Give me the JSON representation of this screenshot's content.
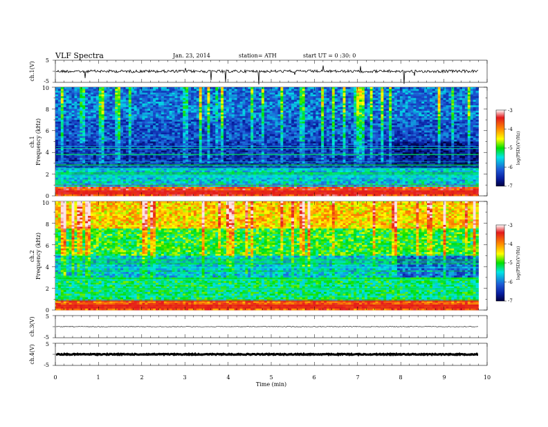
{
  "header": {
    "title": "VLF  Spectra",
    "date": "Jan. 23, 2014",
    "station": "station= ATH",
    "start": "start  UT =   0 :30: 0"
  },
  "chart_data": [
    {
      "type": "line",
      "ylabel": "ch.1(V)",
      "ylim": [
        -5,
        5
      ],
      "ytick_labels": [
        "5",
        "-5"
      ],
      "baseline": 0.0,
      "trace_color": "#000000"
    },
    {
      "type": "heatmap",
      "ylabel_top": "ch.1",
      "ylabel": "Frequency  (kHz)",
      "ylim": [
        0,
        10
      ],
      "ytick_labels": [
        "0",
        "2",
        "4",
        "6",
        "8",
        "10"
      ],
      "segment_breaks_min": [
        4.5,
        7.8
      ],
      "colorbar": {
        "label": "log(PSD)(V²/Hz)",
        "range": [
          -7,
          -3
        ],
        "tick_labels": [
          "-3",
          "-4",
          "-5",
          "-6",
          "-7"
        ]
      }
    },
    {
      "type": "heatmap",
      "ylabel_top": "ch.2",
      "ylabel": "Frequency  (kHz)",
      "ylim": [
        0,
        10
      ],
      "ytick_labels": [
        "0",
        "2",
        "4",
        "6",
        "8",
        "10"
      ],
      "segment_breaks_min": [
        4.5,
        7.8
      ],
      "colorbar": {
        "label": "log(PSD)(V²/Hz)",
        "range": [
          -7,
          -3
        ],
        "tick_labels": [
          "-3",
          "-4",
          "-5",
          "-6",
          "-7"
        ]
      }
    },
    {
      "type": "line",
      "ylabel": "ch.3(V)",
      "ylim": [
        -5,
        5
      ],
      "ytick_labels": [
        "5",
        "-5"
      ],
      "baseline": 0.0
    },
    {
      "type": "line",
      "ylabel": "ch.4(V)",
      "ylim": [
        -5,
        5
      ],
      "ytick_labels": [
        "5",
        "-5"
      ],
      "baseline": 0.0
    }
  ],
  "xaxis": {
    "xlabel": "Time  (min)",
    "xlim": [
      0,
      10
    ],
    "data_end_min": 9.8,
    "tick_labels": [
      "0",
      "1",
      "2",
      "3",
      "4",
      "5",
      "6",
      "7",
      "8",
      "9",
      "10"
    ]
  }
}
